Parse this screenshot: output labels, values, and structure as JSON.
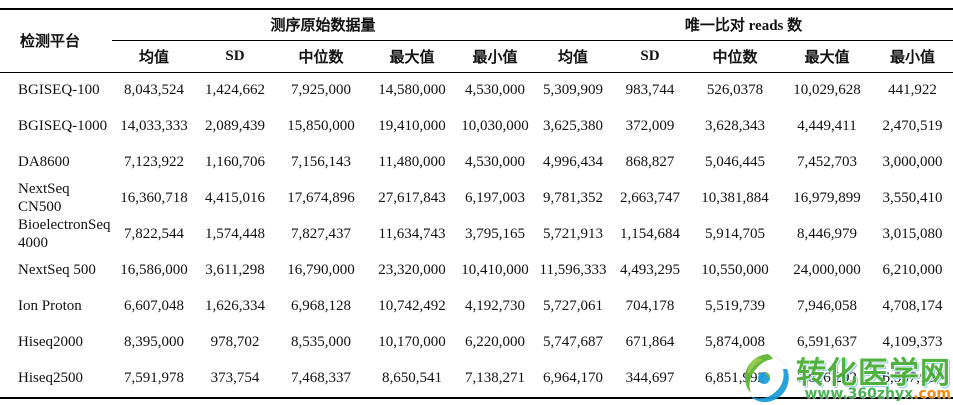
{
  "table": {
    "platform_header": "检测平台",
    "group1": "测序原始数据量",
    "group2": "唯一比对 reads 数",
    "subheaders": [
      "均值",
      "SD",
      "中位数",
      "最大值",
      "最小值"
    ],
    "rows": [
      {
        "platform": "BGISEQ-100",
        "raw": [
          "8,043,524",
          "1,424,662",
          "7,925,000",
          "14,580,000",
          "4,530,000"
        ],
        "unique": [
          "5,309,909",
          "983,744",
          "526,0378",
          "10,029,628",
          "441,922"
        ]
      },
      {
        "platform": "BGISEQ-1000",
        "raw": [
          "14,033,333",
          "2,089,439",
          "15,850,000",
          "19,410,000",
          "10,030,000"
        ],
        "unique": [
          "3,625,380",
          "372,009",
          "3,628,343",
          "4,449,411",
          "2,470,519"
        ]
      },
      {
        "platform": "DA8600",
        "raw": [
          "7,123,922",
          "1,160,706",
          "7,156,143",
          "11,480,000",
          "4,530,000"
        ],
        "unique": [
          "4,996,434",
          "868,827",
          "5,046,445",
          "7,452,703",
          "3,000,000"
        ]
      },
      {
        "platform": "NextSeq CN500",
        "raw": [
          "16,360,718",
          "4,415,016",
          "17,674,896",
          "27,617,843",
          "6,197,003"
        ],
        "unique": [
          "9,781,352",
          "2,663,747",
          "10,381,884",
          "16,979,899",
          "3,550,410"
        ]
      },
      {
        "platform": "BioelectronSeq 4000",
        "raw": [
          "7,822,544",
          "1,574,448",
          "7,827,437",
          "11,634,743",
          "3,795,165"
        ],
        "unique": [
          "5,721,913",
          "1,154,684",
          "5,914,705",
          "8,446,979",
          "3,015,080"
        ]
      },
      {
        "platform": "NextSeq 500",
        "raw": [
          "16,586,000",
          "3,611,298",
          "16,790,000",
          "23,320,000",
          "10,410,000"
        ],
        "unique": [
          "11,596,333",
          "4,493,295",
          "10,550,000",
          "24,000,000",
          "6,210,000"
        ]
      },
      {
        "platform": "Ion Proton",
        "raw": [
          "6,607,048",
          "1,626,334",
          "6,968,128",
          "10,742,492",
          "4,192,730"
        ],
        "unique": [
          "5,727,061",
          "704,178",
          "5,519,739",
          "7,946,058",
          "4,708,174"
        ]
      },
      {
        "platform": "Hiseq2000",
        "raw": [
          "8,395,000",
          "978,702",
          "8,535,000",
          "10,170,000",
          "6,220,000"
        ],
        "unique": [
          "5,747,687",
          "671,864",
          "5,874,008",
          "6,591,637",
          "4,109,373"
        ]
      },
      {
        "platform": "Hiseq2500",
        "raw": [
          "7,591,978",
          "373,754",
          "7,468,337",
          "8,650,541",
          "7,138,271"
        ],
        "unique": [
          "6,964,170",
          "344,697",
          "6,851,992",
          "7,816,292",
          "6,557,937"
        ]
      }
    ]
  },
  "watermark": {
    "name": "转化医学网",
    "url": "www.360zhyx",
    "url_suffix": ".com",
    "colors": {
      "green": "#45ad33",
      "blue": "#1c9ad6",
      "orange": "#f08300"
    }
  }
}
